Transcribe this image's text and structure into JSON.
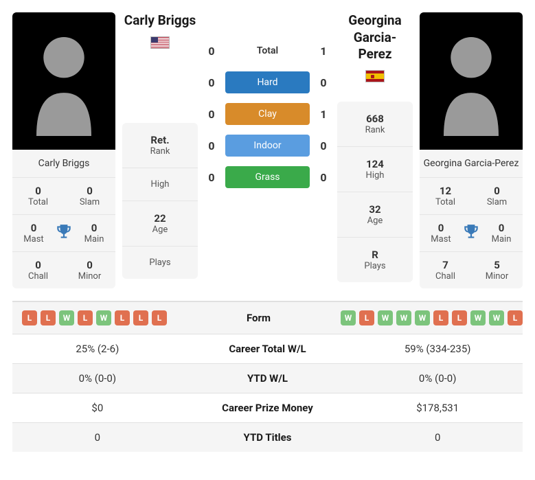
{
  "player1": {
    "name": "Carly Briggs",
    "flag": "us",
    "titles": {
      "total": "0",
      "slam": "0",
      "mast": "0",
      "main": "0",
      "chall": "0",
      "minor": "0"
    },
    "labels": {
      "total": "Total",
      "slam": "Slam",
      "mast": "Mast",
      "main": "Main",
      "chall": "Chall",
      "minor": "Minor"
    },
    "info": {
      "rank": "Ret.",
      "high": "",
      "age": "22",
      "plays": ""
    }
  },
  "player2": {
    "name": "Georgina Garcia-Perez",
    "name_line1": "Georgina",
    "name_line2": "Garcia-Perez",
    "flag": "es",
    "titles": {
      "total": "12",
      "slam": "0",
      "mast": "0",
      "main": "0",
      "chall": "7",
      "minor": "5"
    },
    "labels": {
      "total": "Total",
      "slam": "Slam",
      "mast": "Mast",
      "main": "Main",
      "chall": "Chall",
      "minor": "Minor"
    },
    "info": {
      "rank": "668",
      "high": "124",
      "age": "32",
      "plays": "R"
    }
  },
  "info_labels": {
    "rank": "Rank",
    "high": "High",
    "age": "Age",
    "plays": "Plays"
  },
  "h2h": {
    "total": {
      "label": "Total",
      "p1": "0",
      "p2": "1"
    },
    "hard": {
      "label": "Hard",
      "p1": "0",
      "p2": "0"
    },
    "clay": {
      "label": "Clay",
      "p1": "0",
      "p2": "1"
    },
    "indoor": {
      "label": "Indoor",
      "p1": "0",
      "p2": "0"
    },
    "grass": {
      "label": "Grass",
      "p1": "0",
      "p2": "0"
    }
  },
  "comp": {
    "form_label": "Form",
    "form1": [
      "L",
      "L",
      "W",
      "L",
      "W",
      "L",
      "L",
      "L"
    ],
    "form2": [
      "W",
      "L",
      "W",
      "W",
      "W",
      "L",
      "L",
      "W",
      "W",
      "L"
    ],
    "career_wl": {
      "label": "Career Total W/L",
      "p1": "25% (2-6)",
      "p2": "59% (334-235)"
    },
    "ytd_wl": {
      "label": "YTD W/L",
      "p1": "0% (0-0)",
      "p2": "0% (0-0)"
    },
    "prize": {
      "label": "Career Prize Money",
      "p1": "$0",
      "p2": "$178,531"
    },
    "ytd_titles": {
      "label": "YTD Titles",
      "p1": "0",
      "p2": "0"
    }
  },
  "colors": {
    "hard": "#2a7ac0",
    "clay": "#d88b2a",
    "indoor": "#5a9de0",
    "grass": "#3aaa4a",
    "chip_w": "#7cc47c",
    "chip_l": "#e07050",
    "trophy": "#3a7ab8"
  }
}
